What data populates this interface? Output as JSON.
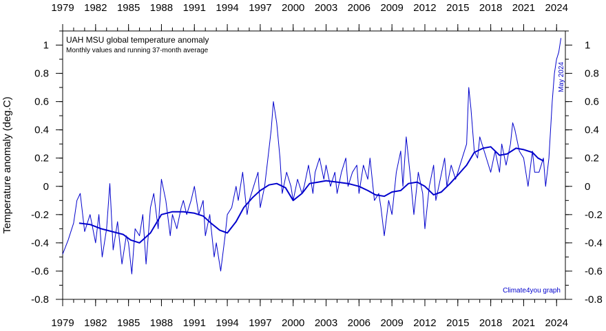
{
  "chart_data": {
    "type": "line",
    "title": "UAH MSU global temperature anomaly",
    "subtitle": "Monthly values and running 37-month average",
    "ylabel": "Temperature anomaly (deg.C)",
    "xlabel": "",
    "xlim": [
      1979,
      2024.8
    ],
    "ylim": [
      -0.8,
      1.1
    ],
    "x_ticks": [
      "1979",
      "1982",
      "1985",
      "1988",
      "1991",
      "1994",
      "1997",
      "2000",
      "2003",
      "2006",
      "2009",
      "2012",
      "2015",
      "2018",
      "2021",
      "2024"
    ],
    "y_ticks": [
      "-0.8",
      "-0.6",
      "-0.4",
      "-0.2",
      "0",
      "0.2",
      "0.4",
      "0.6",
      "0.8",
      "1"
    ],
    "annotation": "May 2024",
    "credit": "Climate4you graph",
    "grid": false,
    "series": [
      {
        "role": "monthly",
        "color": "#0000cc",
        "x": [
          1979.0,
          1979.5,
          1980.0,
          1980.3,
          1980.6,
          1981.0,
          1981.5,
          1982.0,
          1982.3,
          1982.6,
          1983.0,
          1983.3,
          1983.6,
          1984.0,
          1984.4,
          1984.8,
          1985.0,
          1985.3,
          1985.6,
          1986.0,
          1986.3,
          1986.6,
          1987.0,
          1987.3,
          1987.7,
          1988.0,
          1988.4,
          1988.8,
          1989.0,
          1989.4,
          1989.8,
          1990.0,
          1990.3,
          1990.7,
          1991.0,
          1991.4,
          1991.8,
          1992.0,
          1992.4,
          1992.8,
          1993.0,
          1993.4,
          1993.8,
          1994.0,
          1994.4,
          1994.8,
          1995.0,
          1995.4,
          1995.8,
          1996.0,
          1996.4,
          1996.8,
          1997.0,
          1997.4,
          1997.7,
          1998.0,
          1998.2,
          1998.5,
          1998.8,
          1999.0,
          1999.4,
          1999.8,
          2000.0,
          2000.4,
          2000.8,
          2001.0,
          2001.4,
          2001.8,
          2002.0,
          2002.4,
          2002.8,
          2003.0,
          2003.4,
          2003.8,
          2004.0,
          2004.4,
          2004.8,
          2005.0,
          2005.4,
          2005.8,
          2006.0,
          2006.4,
          2006.8,
          2007.0,
          2007.4,
          2007.8,
          2008.0,
          2008.3,
          2008.7,
          2009.0,
          2009.4,
          2009.8,
          2010.0,
          2010.3,
          2010.7,
          2011.0,
          2011.4,
          2011.8,
          2012.0,
          2012.4,
          2012.8,
          2013.0,
          2013.4,
          2013.8,
          2014.0,
          2014.4,
          2014.8,
          2015.0,
          2015.4,
          2015.8,
          2016.0,
          2016.2,
          2016.5,
          2016.8,
          2017.0,
          2017.4,
          2017.8,
          2018.0,
          2018.4,
          2018.8,
          2019.0,
          2019.4,
          2019.8,
          2020.0,
          2020.2,
          2020.6,
          2021.0,
          2021.4,
          2021.8,
          2022.0,
          2022.4,
          2022.8,
          2023.0,
          2023.3,
          2023.6,
          2023.8,
          2024.0,
          2024.2,
          2024.4
        ],
        "values": [
          -0.48,
          -0.38,
          -0.26,
          -0.1,
          -0.05,
          -0.32,
          -0.2,
          -0.4,
          -0.2,
          -0.5,
          -0.3,
          0.02,
          -0.45,
          -0.25,
          -0.55,
          -0.35,
          -0.4,
          -0.62,
          -0.3,
          -0.35,
          -0.2,
          -0.55,
          -0.15,
          -0.05,
          -0.3,
          0.05,
          -0.1,
          -0.35,
          -0.2,
          -0.3,
          -0.15,
          -0.1,
          -0.2,
          -0.1,
          0.0,
          -0.2,
          -0.1,
          -0.35,
          -0.2,
          -0.5,
          -0.4,
          -0.6,
          -0.35,
          -0.2,
          -0.15,
          0.0,
          -0.1,
          0.1,
          -0.2,
          -0.1,
          0.0,
          0.1,
          -0.15,
          0.0,
          0.2,
          0.4,
          0.6,
          0.45,
          0.2,
          -0.05,
          0.1,
          0.0,
          -0.1,
          0.05,
          -0.05,
          0.0,
          0.15,
          -0.05,
          0.1,
          0.2,
          0.05,
          0.15,
          0.0,
          0.1,
          -0.05,
          0.1,
          0.2,
          0.0,
          0.1,
          0.15,
          -0.05,
          0.15,
          0.05,
          0.2,
          -0.1,
          -0.05,
          -0.15,
          -0.35,
          -0.1,
          -0.2,
          0.1,
          0.25,
          0.0,
          0.35,
          0.05,
          -0.2,
          0.1,
          -0.05,
          -0.3,
          0.0,
          0.15,
          -0.1,
          0.05,
          0.2,
          0.0,
          0.15,
          0.05,
          0.1,
          0.2,
          0.3,
          0.7,
          0.55,
          0.25,
          0.2,
          0.35,
          0.25,
          0.15,
          0.1,
          0.25,
          0.1,
          0.3,
          0.15,
          0.3,
          0.45,
          0.4,
          0.25,
          0.2,
          0.0,
          0.25,
          0.1,
          0.1,
          0.2,
          0.0,
          0.2,
          0.6,
          0.8,
          0.9,
          0.95,
          1.05
        ]
      },
      {
        "role": "running 37-month average",
        "color": "#0000cc",
        "x": [
          1980.5,
          1981.5,
          1982.5,
          1983.5,
          1984.5,
          1985.2,
          1986.0,
          1987.0,
          1988.0,
          1989.0,
          1990.0,
          1991.0,
          1991.8,
          1992.5,
          1993.3,
          1994.0,
          1994.8,
          1995.5,
          1996.3,
          1997.0,
          1997.8,
          1998.5,
          1999.3,
          2000.0,
          2000.8,
          2001.5,
          2002.3,
          2003.0,
          2004.0,
          2005.0,
          2006.0,
          2006.8,
          2007.5,
          2008.3,
          2009.0,
          2009.8,
          2010.5,
          2011.3,
          2012.0,
          2012.8,
          2013.5,
          2014.3,
          2015.0,
          2015.8,
          2016.5,
          2017.3,
          2018.0,
          2018.8,
          2019.5,
          2020.3,
          2021.0,
          2021.8,
          2022.3,
          2022.8
        ],
        "values": [
          -0.26,
          -0.27,
          -0.3,
          -0.32,
          -0.34,
          -0.38,
          -0.4,
          -0.33,
          -0.2,
          -0.18,
          -0.18,
          -0.19,
          -0.21,
          -0.26,
          -0.31,
          -0.33,
          -0.25,
          -0.15,
          -0.08,
          -0.03,
          0.01,
          0.02,
          -0.01,
          -0.1,
          -0.05,
          0.02,
          0.03,
          0.04,
          0.03,
          0.02,
          0.0,
          -0.03,
          -0.06,
          -0.07,
          -0.04,
          -0.03,
          0.02,
          0.03,
          0.0,
          -0.06,
          -0.04,
          0.02,
          0.08,
          0.15,
          0.24,
          0.27,
          0.28,
          0.22,
          0.23,
          0.27,
          0.26,
          0.24,
          0.2,
          0.18
        ]
      }
    ]
  }
}
